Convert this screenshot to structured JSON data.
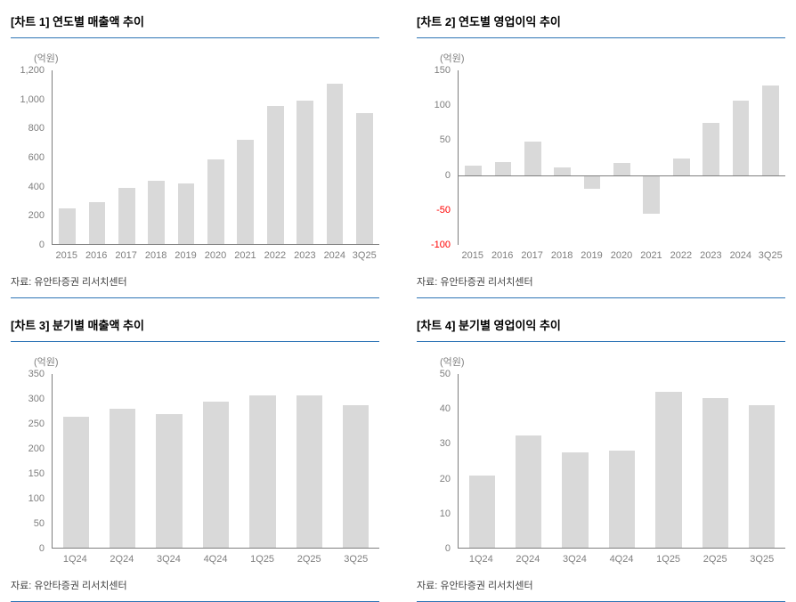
{
  "palette": {
    "accent_line": "#2e75b6",
    "bar_fill": "#d9d9d9",
    "axis_line": "#7f7f7f",
    "tick_text": "#7f7f7f",
    "negative_tick_text": "#ff0000",
    "title_text": "#000000",
    "source_text": "#404040"
  },
  "source_note": "자료: 유안타증권 리서치센터",
  "chart_data": [
    {
      "type": "bar",
      "title": "[차트 1] 연도별 매출액 추이",
      "ylabel": "(억원)",
      "xlabel": "",
      "categories": [
        "2015",
        "2016",
        "2017",
        "2018",
        "2019",
        "2020",
        "2021",
        "2022",
        "2023",
        "2024",
        "3Q25"
      ],
      "values": [
        250,
        295,
        390,
        440,
        425,
        590,
        720,
        955,
        990,
        1110,
        905
      ],
      "ylim": [
        0,
        1200
      ],
      "ytick_step": 200,
      "grid": false,
      "legend": "none"
    },
    {
      "type": "bar",
      "title": "[차트 2] 연도별 영업이익 추이",
      "ylabel": "(억원)",
      "xlabel": "",
      "categories": [
        "2015",
        "2016",
        "2017",
        "2018",
        "2019",
        "2020",
        "2021",
        "2022",
        "2023",
        "2024",
        "3Q25"
      ],
      "values": [
        13,
        18,
        48,
        11,
        -20,
        17,
        -55,
        24,
        75,
        106,
        128
      ],
      "ylim": [
        -100,
        150
      ],
      "ytick_step": 50,
      "grid": false,
      "legend": "none"
    },
    {
      "type": "bar",
      "title": "[차트 3] 분기별 매출액 추이",
      "ylabel": "(억원)",
      "xlabel": "",
      "categories": [
        "1Q24",
        "2Q24",
        "3Q24",
        "4Q24",
        "1Q25",
        "2Q25",
        "3Q25"
      ],
      "values": [
        265,
        280,
        270,
        295,
        307,
        307,
        287
      ],
      "ylim": [
        0,
        350
      ],
      "ytick_step": 50,
      "grid": false,
      "legend": "none"
    },
    {
      "type": "bar",
      "title": "[차트 4] 분기별 영업이익 추이",
      "ylabel": "(억원)",
      "xlabel": "",
      "categories": [
        "1Q24",
        "2Q24",
        "3Q24",
        "4Q24",
        "1Q25",
        "2Q25",
        "3Q25"
      ],
      "values": [
        21,
        32.5,
        27.5,
        28,
        45,
        43,
        41
      ],
      "ylim": [
        0,
        50
      ],
      "ytick_step": 10,
      "grid": false,
      "legend": "none"
    }
  ]
}
